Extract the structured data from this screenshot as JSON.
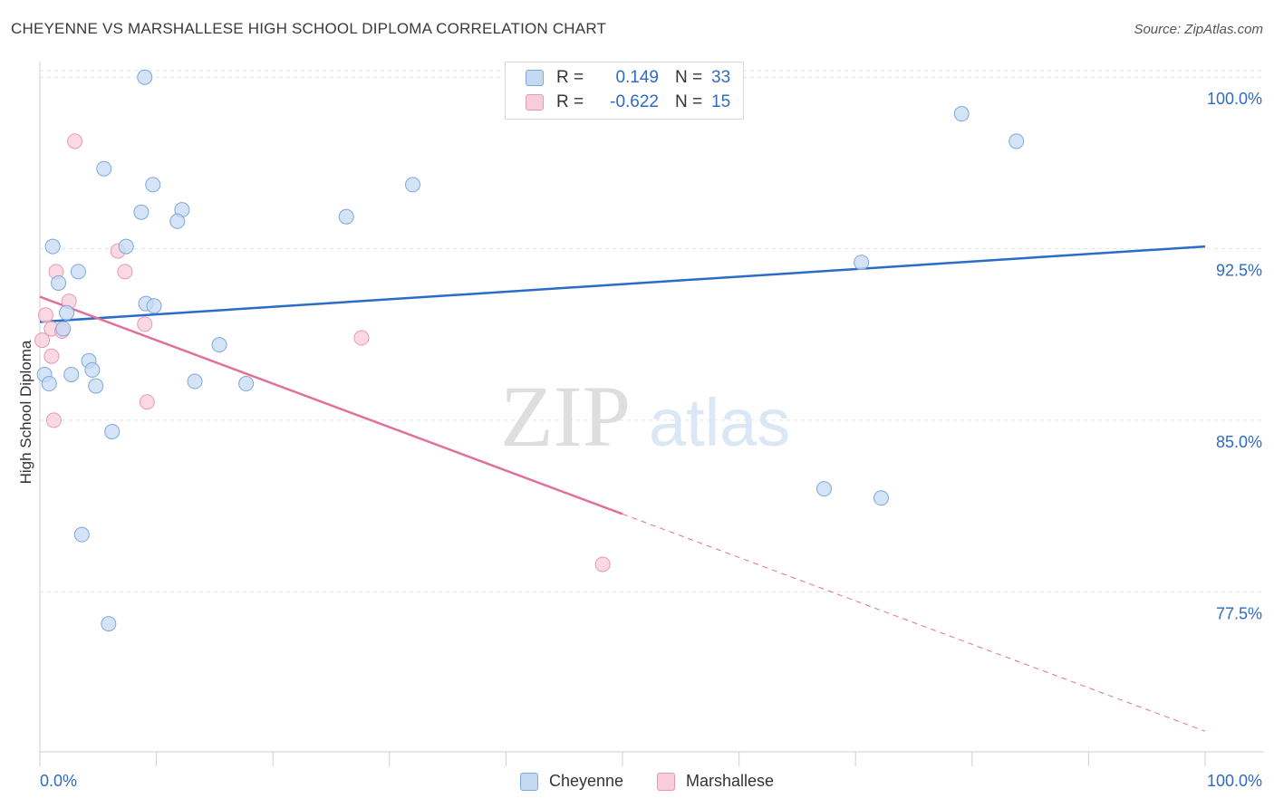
{
  "title": "CHEYENNE VS MARSHALLESE HIGH SCHOOL DIPLOMA CORRELATION CHART",
  "source": "Source: ZipAtlas.com",
  "watermark": {
    "zip": "ZIP",
    "atlas": "atlas"
  },
  "legend": {
    "rows": [
      {
        "r_label": "R =",
        "r_value": "0.149",
        "n_label": "N =",
        "n_value": "33"
      },
      {
        "r_label": "R =",
        "r_value": "-0.622",
        "n_label": "N =",
        "n_value": "15"
      }
    ]
  },
  "bottom_legend": {
    "cheyenne": "Cheyenne",
    "marshallese": "Marshallese"
  },
  "colors": {
    "cheyenne_fill": "#c5d9f3",
    "cheyenne_stroke": "#7ea8dc",
    "cheyenne_line": "#2a6cc7",
    "marshallese_fill": "#f9ccd9",
    "marshallese_stroke": "#e79ab3",
    "marshallese_line": "#e0709a",
    "axis_label": "#2d6bc4",
    "grid": "#e3e3e3"
  },
  "chart_data": {
    "type": "scatter",
    "title": "CHEYENNE VS MARSHALLESE HIGH SCHOOL DIPLOMA CORRELATION CHART",
    "xlabel": "",
    "ylabel": "High School Diploma",
    "xlim": [
      0,
      100
    ],
    "ylim": [
      70.5,
      101.0
    ],
    "x_tick_labels": [
      "0.0%",
      "100.0%"
    ],
    "y_ticks": [
      77.5,
      85.0,
      92.5,
      100.0
    ],
    "y_tick_labels": [
      "77.5%",
      "85.0%",
      "92.5%",
      "100.0%"
    ],
    "grid": true,
    "legend_position": "top-center",
    "series": [
      {
        "name": "Cheyenne",
        "R": 0.149,
        "N": 33,
        "trend": {
          "x": [
            0,
            100
          ],
          "y": [
            89.3,
            92.6
          ]
        },
        "points": [
          {
            "x": 9.0,
            "y": 100.0
          },
          {
            "x": 5.5,
            "y": 96.0
          },
          {
            "x": 9.7,
            "y": 95.3
          },
          {
            "x": 8.7,
            "y": 94.1
          },
          {
            "x": 12.2,
            "y": 94.2
          },
          {
            "x": 11.8,
            "y": 93.7
          },
          {
            "x": 1.1,
            "y": 92.6
          },
          {
            "x": 7.4,
            "y": 92.6
          },
          {
            "x": 3.3,
            "y": 91.5
          },
          {
            "x": 1.6,
            "y": 91.0
          },
          {
            "x": 9.1,
            "y": 90.1
          },
          {
            "x": 9.8,
            "y": 90.0
          },
          {
            "x": 2.3,
            "y": 89.7
          },
          {
            "x": 2.0,
            "y": 89.0
          },
          {
            "x": 15.4,
            "y": 88.3
          },
          {
            "x": 4.2,
            "y": 87.6
          },
          {
            "x": 4.5,
            "y": 87.2
          },
          {
            "x": 2.7,
            "y": 87.0
          },
          {
            "x": 0.4,
            "y": 87.0
          },
          {
            "x": 0.8,
            "y": 86.6
          },
          {
            "x": 4.8,
            "y": 86.5
          },
          {
            "x": 13.3,
            "y": 86.7
          },
          {
            "x": 17.7,
            "y": 86.6
          },
          {
            "x": 6.2,
            "y": 84.5
          },
          {
            "x": 3.6,
            "y": 80.0
          },
          {
            "x": 5.9,
            "y": 76.1
          },
          {
            "x": 26.3,
            "y": 93.9
          },
          {
            "x": 32.0,
            "y": 95.3
          },
          {
            "x": 79.1,
            "y": 98.4
          },
          {
            "x": 83.8,
            "y": 97.2
          },
          {
            "x": 70.5,
            "y": 91.9
          },
          {
            "x": 67.3,
            "y": 82.0
          },
          {
            "x": 72.2,
            "y": 81.6
          }
        ]
      },
      {
        "name": "Marshallese",
        "R": -0.622,
        "N": 15,
        "trend": {
          "x": [
            0,
            50
          ],
          "y": [
            90.4,
            80.9
          ]
        },
        "trend_extended": {
          "x": [
            50,
            100
          ],
          "y": [
            80.9,
            71.4
          ]
        },
        "points": [
          {
            "x": 3.0,
            "y": 97.2
          },
          {
            "x": 6.7,
            "y": 92.4
          },
          {
            "x": 7.3,
            "y": 91.5
          },
          {
            "x": 1.4,
            "y": 91.5
          },
          {
            "x": 2.5,
            "y": 90.2
          },
          {
            "x": 0.5,
            "y": 89.6
          },
          {
            "x": 1.0,
            "y": 89.0
          },
          {
            "x": 1.9,
            "y": 88.9
          },
          {
            "x": 0.2,
            "y": 88.5
          },
          {
            "x": 9.0,
            "y": 89.2
          },
          {
            "x": 1.0,
            "y": 87.8
          },
          {
            "x": 27.6,
            "y": 88.6
          },
          {
            "x": 9.2,
            "y": 85.8
          },
          {
            "x": 1.2,
            "y": 85.0
          },
          {
            "x": 48.3,
            "y": 78.7
          }
        ]
      }
    ]
  }
}
